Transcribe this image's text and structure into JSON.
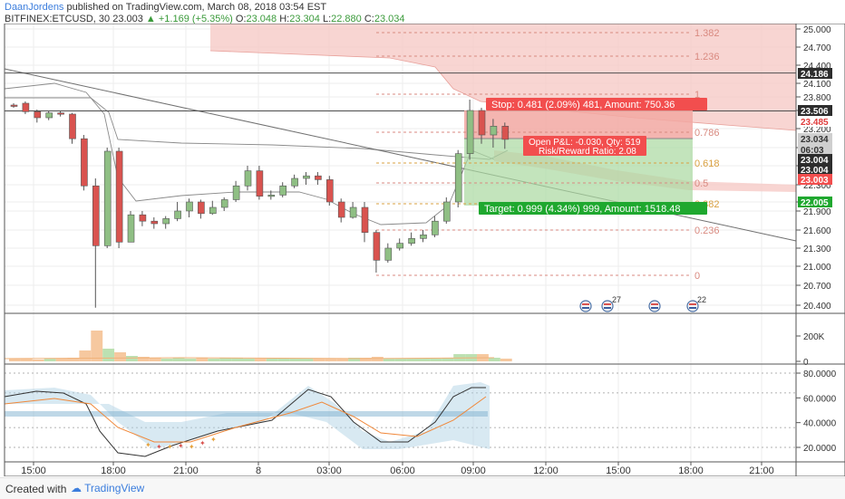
{
  "header": {
    "author": "DaanJordens",
    "published": "published on TradingView.com, March 08, 2018 03:54 EST",
    "symbol": "BITFINEX:ETCUSD, 30",
    "last": "23.003",
    "change": "+1.169 (+5.35%)",
    "open_label": "O:",
    "open": "23.048",
    "high_label": "H:",
    "high": "23.304",
    "low_label": "L:",
    "low": "22.880",
    "close_label": "C:",
    "close": "23.034"
  },
  "footer": {
    "created": "Created with",
    "brand": "TradingView"
  },
  "colors": {
    "bull": "#8fbf84",
    "bear": "#d9534f",
    "stop": "#f24e4e",
    "target": "#1fa82f",
    "cloud": "#f6c7c3"
  },
  "chart_data": {
    "type": "candlestick",
    "price_axis": {
      "min": 20.2,
      "max": 25.1,
      "ticks": [
        "25.000",
        "24.700",
        "24.400",
        "24.100",
        "23.800",
        "23.500",
        "23.200",
        "22.900",
        "22.600",
        "22.300",
        "22.000",
        "21.900",
        "21.600",
        "21.300",
        "21.000",
        "20.700",
        "20.400"
      ]
    },
    "time_axis": {
      "labels": [
        "15:00",
        "18:00",
        "21:00",
        "8",
        "03:00",
        "06:00",
        "09:00",
        "12:00",
        "15:00",
        "18:00",
        "21:00"
      ]
    },
    "candles": [
      [
        23.62,
        23.6,
        23.66,
        23.56
      ],
      [
        23.66,
        23.48,
        23.7,
        23.44
      ],
      [
        23.48,
        23.38,
        23.52,
        23.3
      ],
      [
        23.38,
        23.46,
        23.5,
        23.34
      ],
      [
        23.46,
        23.44,
        23.5,
        23.4
      ],
      [
        23.44,
        23.04,
        23.46,
        22.96
      ],
      [
        23.04,
        22.28,
        23.1,
        22.2
      ],
      [
        22.28,
        21.34,
        22.4,
        20.36
      ],
      [
        21.34,
        22.84,
        22.9,
        21.3
      ],
      [
        22.84,
        21.4,
        22.9,
        21.3
      ],
      [
        21.4,
        21.84,
        21.9,
        21.4
      ],
      [
        21.84,
        21.74,
        21.9,
        21.66
      ],
      [
        21.74,
        21.7,
        21.8,
        21.62
      ],
      [
        21.7,
        21.78,
        21.82,
        21.62
      ],
      [
        21.78,
        21.9,
        22.0,
        21.74
      ],
      [
        21.9,
        22.0,
        22.06,
        21.8
      ],
      [
        22.0,
        21.86,
        22.04,
        21.78
      ],
      [
        21.86,
        21.94,
        22.02,
        21.84
      ],
      [
        21.94,
        22.04,
        22.08,
        21.9
      ],
      [
        22.04,
        22.28,
        22.36,
        22.0
      ],
      [
        22.28,
        22.52,
        22.6,
        22.2
      ],
      [
        22.52,
        22.1,
        22.6,
        22.04
      ],
      [
        22.1,
        22.12,
        22.2,
        22.04
      ],
      [
        22.12,
        22.28,
        22.34,
        22.08
      ],
      [
        22.28,
        22.4,
        22.46,
        22.24
      ],
      [
        22.4,
        22.44,
        22.5,
        22.3
      ],
      [
        22.44,
        22.38,
        22.5,
        22.3
      ],
      [
        22.38,
        22.0,
        22.44,
        21.96
      ],
      [
        22.0,
        21.8,
        22.06,
        21.72
      ],
      [
        21.8,
        21.94,
        22.0,
        21.78
      ],
      [
        21.94,
        21.56,
        22.0,
        21.4
      ],
      [
        21.56,
        21.1,
        21.6,
        20.9
      ],
      [
        21.1,
        21.3,
        21.38,
        21.06
      ],
      [
        21.3,
        21.38,
        21.46,
        21.26
      ],
      [
        21.38,
        21.46,
        21.56,
        21.34
      ],
      [
        21.46,
        21.52,
        21.6,
        21.4
      ],
      [
        21.52,
        21.74,
        21.82,
        21.48
      ],
      [
        21.74,
        22.0,
        22.08,
        21.7
      ],
      [
        22.0,
        22.8,
        22.86,
        21.94
      ],
      [
        22.8,
        23.5,
        23.74,
        22.7
      ],
      [
        23.5,
        23.1,
        23.56,
        22.96
      ],
      [
        23.1,
        23.24,
        23.36,
        22.9
      ],
      [
        23.24,
        23.03,
        23.3,
        22.88
      ]
    ],
    "volume_axis": {
      "ticks": [
        "200K",
        "0"
      ]
    },
    "oscillator_axis": {
      "ticks": [
        "80.0000",
        "60.0000",
        "40.0000",
        "20.0000"
      ]
    },
    "fib_levels": [
      {
        "label": "1.382"
      },
      {
        "label": "1.236"
      },
      {
        "label": "1"
      },
      {
        "label": "0.786"
      },
      {
        "label": "0.618"
      },
      {
        "label": "0.5"
      },
      {
        "label": "0.382"
      },
      {
        "label": "0.236"
      },
      {
        "label": "0"
      }
    ],
    "position": {
      "stop_text": "Stop: 0.481 (2.09%) 481, Amount: 750.36",
      "pnl_text": "Open P&L: -0.030, Qty: 519",
      "rr_text": "Risk/Reward Ratio: 2.08",
      "target_text": "Target: 0.999 (4.34%) 999, Amount: 1518.48"
    },
    "price_labels": [
      "24.186",
      "23.506",
      "23.485",
      "23.034",
      "06:03",
      "23.004",
      "23.004",
      "23.003",
      "22.005"
    ],
    "event_badges": [
      "27",
      "22"
    ]
  }
}
